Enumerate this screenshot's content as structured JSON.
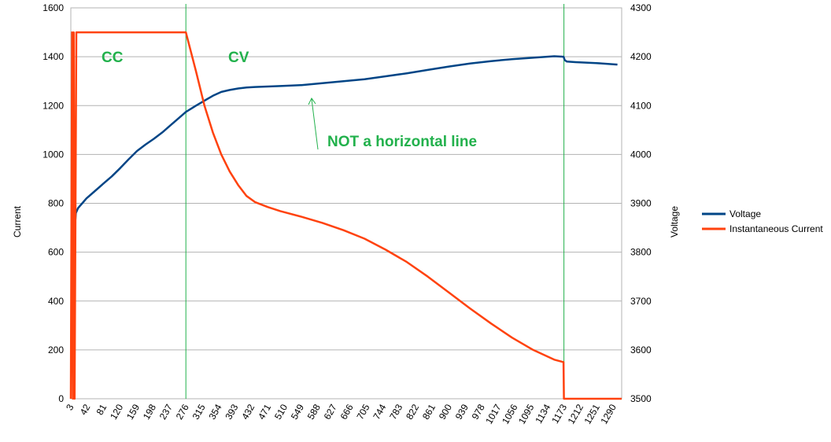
{
  "chart_data": {
    "type": "line",
    "title": "",
    "ylabel_left": "Current",
    "ylabel_right": "Voltage",
    "xlabel": "",
    "ylim_left": [
      0,
      1600
    ],
    "ylim_right": [
      3500,
      4300
    ],
    "yticks_left": [
      "0",
      "200",
      "400",
      "600",
      "800",
      "1000",
      "1200",
      "1400",
      "1600"
    ],
    "yticks_right": [
      "3500",
      "3600",
      "3700",
      "3800",
      "3900",
      "4000",
      "4100",
      "4200",
      "4300"
    ],
    "xlim": [
      3,
      1310
    ],
    "xticks": [
      "3",
      "42",
      "81",
      "120",
      "159",
      "198",
      "237",
      "276",
      "315",
      "354",
      "393",
      "432",
      "471",
      "510",
      "549",
      "588",
      "627",
      "666",
      "705",
      "744",
      "783",
      "822",
      "861",
      "900",
      "939",
      "978",
      "1017",
      "1056",
      "1095",
      "1134",
      "1173",
      "1212",
      "1251",
      "1290"
    ],
    "grid": true,
    "legend_position": "right",
    "colors": {
      "voltage": "#004586",
      "current": "#ff420e",
      "marker": "#22b14c",
      "grid": "#b3b3b3"
    },
    "series": [
      {
        "name": "Voltage",
        "axis": "right",
        "x": [
          3,
          5,
          10,
          15,
          20,
          25,
          30,
          40,
          60,
          80,
          100,
          120,
          140,
          160,
          180,
          200,
          220,
          240,
          260,
          276,
          300,
          320,
          340,
          360,
          380,
          400,
          420,
          440,
          470,
          500,
          550,
          600,
          650,
          700,
          750,
          800,
          850,
          900,
          950,
          1000,
          1050,
          1100,
          1150,
          1172,
          1175,
          1180,
          1200,
          1250,
          1300
        ],
        "values": [
          3797,
          3797,
          3820,
          3880,
          3890,
          3895,
          3900,
          3910,
          3925,
          3940,
          3955,
          3972,
          3990,
          4007,
          4020,
          4032,
          4045,
          4060,
          4075,
          4087,
          4100,
          4110,
          4120,
          4128,
          4132,
          4135,
          4137,
          4138,
          4139,
          4140,
          4142,
          4146,
          4150,
          4154,
          4160,
          4166,
          4173,
          4180,
          4186,
          4191,
          4195,
          4198,
          4201,
          4200,
          4193,
          4190,
          4189,
          4187,
          4184
        ]
      },
      {
        "name": "Instantaneous Current",
        "axis": "left",
        "x": [
          3,
          6,
          8,
          10,
          12,
          16,
          276,
          300,
          320,
          340,
          360,
          380,
          400,
          420,
          440,
          470,
          500,
          550,
          600,
          650,
          700,
          750,
          800,
          850,
          900,
          950,
          1000,
          1050,
          1100,
          1150,
          1172,
          1173,
          1175,
          1200,
          1250,
          1310
        ],
        "values": [
          0,
          1500,
          0,
          1500,
          0,
          1500,
          1500,
          1340,
          1200,
          1090,
          1000,
          930,
          875,
          830,
          805,
          785,
          768,
          745,
          720,
          690,
          655,
          610,
          560,
          500,
          435,
          370,
          308,
          250,
          200,
          160,
          150,
          0,
          0,
          0,
          0,
          0
        ]
      }
    ],
    "annotations": {
      "cc_label": "CC",
      "cv_label": "CV",
      "note": "NOT a horizontal line",
      "cc_cv_boundary_x": 276,
      "end_x": 1173
    }
  }
}
